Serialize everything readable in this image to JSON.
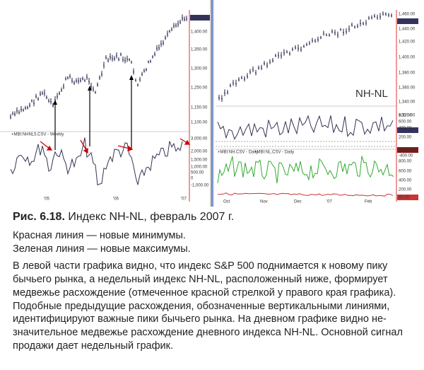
{
  "figure": {
    "left": {
      "price_ticks": [
        "1,451.19",
        "1,400.00",
        "1,350.00",
        "1,300.00",
        "1,250.00",
        "1,150.00",
        "1,100.00"
      ],
      "indicator_label": "+MBI:NHNL5.CSV - Weekly",
      "indicator_ticks": [
        "3,000.00",
        "2,000.00",
        "1,500.00",
        "1,000.00",
        "500.00",
        "0",
        "-1,000.00"
      ],
      "dates": [
        "'05",
        "'06",
        "'07"
      ]
    },
    "right": {
      "price_ticks": [
        "1,460.00",
        "1,451.19",
        "1,440.00",
        "1,420.00",
        "1,400.00",
        "1,380.00",
        "1,360.00",
        "1,340.00",
        "1,320.00"
      ],
      "annotation": "NH-NL",
      "indicator_ticks": [
        "800.00",
        "600.00",
        "400.00",
        "200.00",
        "-100.00",
        "-200.00",
        "-400.00"
      ],
      "legend": [
        "+MBI:NH.CSV - Daily",
        "+MBI:NL.CSV - Daily"
      ],
      "lower_ticks": [
        "800.00",
        "600.00",
        "400.00",
        "200.00",
        "83.00"
      ],
      "dates": [
        "Oct",
        "Nov",
        "Dec",
        "'07",
        "Feb"
      ]
    }
  },
  "caption": {
    "label": "Рис. 6.18.",
    "title": "Индекс NH-NL, февраль 2007 г."
  },
  "legend_lines": [
    "Красная линия — новые минимумы.",
    "Зеленая линия — новые максимумы."
  ],
  "body_lines": [
    "В левой части графика видно, что индекс S&P 500 поднимается к новому пику",
    "бычьего рынка, а недельный индекс NH-NL, расположенный ниже, формирует",
    "медвежье расхождение (отмеченное красной стрелкой у правого края графика).",
    "Подобные предыдущие расхождения, обозначенные вертикальными линиями,",
    "идентифицируют важные пики бычьего рынка. На дневном графике видно не-",
    "значительное медвежье расхождение дневного индекса NH-NL. Основной сигнал",
    "продажи дает недельный график."
  ]
}
